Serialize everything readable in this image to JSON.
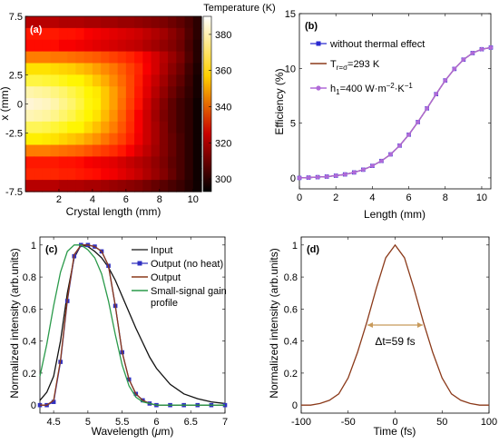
{
  "chart_data": [
    {
      "panel_label": "(a)",
      "type": "heatmap",
      "xlabel": "Crystal length (mm)",
      "ylabel": "x (mm)",
      "xlim": [
        0,
        10.5
      ],
      "ylim": [
        -7.5,
        7.5
      ],
      "xticks": [
        "2",
        "4",
        "6",
        "8",
        "10"
      ],
      "yticks": [
        "-7.5",
        "-2.5",
        "0",
        "2.5",
        "7.5"
      ],
      "colorbar": {
        "label": "Temperature (K)",
        "range": [
          293,
          390
        ],
        "ticks": [
          "300",
          "320",
          "340",
          "360",
          "380"
        ]
      },
      "x": [
        0.25,
        0.75,
        1.25,
        1.75,
        2.25,
        2.75,
        3.25,
        3.75,
        4.25,
        4.75,
        5.25,
        5.75,
        6.25,
        6.75,
        7.25,
        7.75,
        8.25,
        8.75,
        9.25,
        9.75,
        10.25
      ],
      "y": [
        7,
        6,
        5,
        4,
        3,
        2,
        1,
        0,
        -1,
        -2,
        -3,
        -4,
        -5,
        -6,
        -7
      ],
      "values": [
        [
          318,
          318,
          318,
          318,
          317,
          317,
          317,
          316,
          316,
          315,
          315,
          314,
          314,
          313,
          312,
          311,
          310,
          308,
          306,
          303,
          299
        ],
        [
          330,
          330,
          330,
          330,
          329,
          329,
          328,
          327,
          326,
          325,
          324,
          323,
          322,
          321,
          319,
          317,
          315,
          312,
          309,
          304,
          299
        ],
        [
          328,
          328,
          328,
          328,
          327,
          327,
          326,
          325,
          324,
          323,
          322,
          321,
          320,
          319,
          317,
          315,
          313,
          311,
          308,
          303,
          298
        ],
        [
          345,
          345,
          345,
          344,
          344,
          343,
          342,
          341,
          340,
          338,
          336,
          334,
          332,
          329,
          326,
          322,
          318,
          314,
          310,
          304,
          298
        ],
        [
          360,
          360,
          360,
          359,
          358,
          357,
          355,
          353,
          350,
          347,
          344,
          340,
          336,
          332,
          327,
          322,
          317,
          312,
          308,
          302,
          297
        ],
        [
          372,
          372,
          371,
          370,
          368,
          366,
          363,
          360,
          356,
          352,
          347,
          342,
          337,
          331,
          325,
          320,
          315,
          310,
          306,
          301,
          296
        ],
        [
          382,
          381,
          380,
          378,
          376,
          373,
          370,
          366,
          361,
          356,
          350,
          344,
          337,
          330,
          324,
          318,
          313,
          308,
          304,
          300,
          296
        ],
        [
          386,
          385,
          384,
          382,
          379,
          376,
          372,
          367,
          362,
          356,
          350,
          343,
          336,
          329,
          322,
          316,
          311,
          306,
          302,
          299,
          295
        ],
        [
          383,
          382,
          381,
          379,
          376,
          373,
          369,
          365,
          360,
          354,
          348,
          341,
          334,
          327,
          321,
          315,
          310,
          306,
          302,
          299,
          295
        ],
        [
          374,
          374,
          373,
          371,
          369,
          366,
          363,
          359,
          355,
          350,
          345,
          339,
          333,
          327,
          321,
          316,
          311,
          306,
          302,
          299,
          295
        ],
        [
          362,
          362,
          361,
          360,
          358,
          356,
          354,
          351,
          348,
          344,
          340,
          336,
          331,
          326,
          321,
          316,
          311,
          307,
          303,
          299,
          295
        ],
        [
          345,
          345,
          345,
          344,
          343,
          342,
          341,
          339,
          337,
          335,
          333,
          330,
          327,
          323,
          319,
          315,
          311,
          307,
          303,
          299,
          295
        ],
        [
          330,
          330,
          330,
          330,
          329,
          329,
          328,
          327,
          326,
          325,
          324,
          322,
          320,
          318,
          316,
          313,
          310,
          306,
          303,
          299,
          295
        ],
        [
          332,
          332,
          332,
          332,
          331,
          331,
          330,
          329,
          328,
          327,
          326,
          324,
          322,
          320,
          317,
          314,
          311,
          307,
          303,
          299,
          295
        ],
        [
          318,
          318,
          318,
          318,
          317,
          317,
          317,
          316,
          316,
          315,
          314,
          313,
          312,
          311,
          309,
          307,
          305,
          303,
          301,
          298,
          295
        ]
      ]
    },
    {
      "panel_label": "(b)",
      "type": "line",
      "xlabel": "Length (mm)",
      "ylabel": "Efficiency (%)",
      "xlim": [
        0,
        10.5
      ],
      "ylim": [
        -1,
        15
      ],
      "xticks": [
        "0",
        "2",
        "4",
        "6",
        "8",
        "10"
      ],
      "yticks": [
        "0",
        "5",
        "10",
        "15"
      ],
      "legend_position": "top-left",
      "x": [
        0,
        0.5,
        1,
        1.5,
        2,
        2.5,
        3,
        3.5,
        4,
        4.5,
        5,
        5.5,
        6,
        6.5,
        7,
        7.5,
        8,
        8.5,
        9,
        9.5,
        10,
        10.5
      ],
      "series": [
        {
          "name_main": "without thermal effect",
          "name_sub": "",
          "name_mid": "",
          "name_sup": "",
          "name_tail": "",
          "color": "#2a2ad0",
          "marker": "square",
          "values": [
            0,
            0.03,
            0.07,
            0.12,
            0.2,
            0.32,
            0.5,
            0.75,
            1.1,
            1.55,
            2.15,
            2.95,
            3.95,
            5.1,
            6.35,
            7.65,
            8.9,
            9.95,
            10.8,
            11.4,
            11.75,
            11.9
          ]
        },
        {
          "name_main": "T",
          "name_sub": "r=σ",
          "name_mid": "",
          "name_sup": "",
          "name_tail": "=293 K",
          "color": "#8b3a1a",
          "marker": "none",
          "values": [
            0,
            0.03,
            0.07,
            0.12,
            0.2,
            0.32,
            0.5,
            0.75,
            1.1,
            1.55,
            2.15,
            2.95,
            3.95,
            5.1,
            6.35,
            7.65,
            8.9,
            9.95,
            10.8,
            11.4,
            11.75,
            11.9
          ]
        },
        {
          "name_main": "h",
          "name_sub": "1",
          "name_mid": "=400 W·m",
          "name_sup": "−2",
          "name_tail": "·K",
          "name_sup2": "−1",
          "color": "#b06ad8",
          "marker": "circle",
          "values": [
            0,
            0.03,
            0.07,
            0.12,
            0.2,
            0.32,
            0.5,
            0.75,
            1.1,
            1.55,
            2.15,
            2.95,
            3.95,
            5.1,
            6.35,
            7.65,
            8.9,
            9.95,
            10.8,
            11.4,
            11.75,
            11.9
          ]
        }
      ]
    },
    {
      "panel_label": "(c)",
      "type": "line",
      "xlabel_main": "Wavelength (",
      "xlabel_mu": "μ",
      "xlabel_tail": "m)",
      "ylabel": "Normalized intensity (arb.units)",
      "xlim": [
        4.3,
        7.0
      ],
      "ylim": [
        -0.05,
        1.05
      ],
      "xticks": [
        "4.5",
        "5",
        "5.5",
        "6",
        "6.5",
        "7"
      ],
      "yticks": [
        "0",
        "0.2",
        "0.4",
        "0.6",
        "0.8",
        "1"
      ],
      "legend_position": "top-right",
      "x": [
        4.3,
        4.4,
        4.5,
        4.6,
        4.7,
        4.8,
        4.9,
        5.0,
        5.1,
        5.2,
        5.3,
        5.4,
        5.5,
        5.6,
        5.7,
        5.8,
        5.9,
        6.0,
        6.2,
        6.4,
        6.6,
        6.8,
        7.0
      ],
      "series": [
        {
          "name": "Input",
          "color": "#111111",
          "marker": "none",
          "values": [
            0.03,
            0.08,
            0.18,
            0.4,
            0.7,
            0.92,
            1.0,
            0.99,
            0.96,
            0.92,
            0.86,
            0.78,
            0.68,
            0.58,
            0.48,
            0.39,
            0.3,
            0.23,
            0.13,
            0.07,
            0.04,
            0.02,
            0.01
          ]
        },
        {
          "name": "Output (no heat)",
          "color": "#3030c0",
          "marker": "square",
          "values": [
            0.0,
            0.0,
            0.02,
            0.27,
            0.65,
            0.93,
            1.0,
            1.0,
            0.99,
            0.96,
            0.87,
            0.62,
            0.33,
            0.16,
            0.07,
            0.03,
            0.01,
            0.0,
            0.0,
            0.0,
            0.0,
            0.0,
            0.0
          ]
        },
        {
          "name": "Output",
          "color": "#8b3a1a",
          "marker": "none",
          "values": [
            0.0,
            0.0,
            0.03,
            0.28,
            0.66,
            0.94,
            1.0,
            1.0,
            0.99,
            0.96,
            0.87,
            0.62,
            0.33,
            0.16,
            0.07,
            0.03,
            0.01,
            0.0,
            0.0,
            0.0,
            0.0,
            0.0,
            0.0
          ]
        },
        {
          "name": "Small-signal gain profile",
          "color": "#2a9a4a",
          "marker": "none",
          "values": [
            0.18,
            0.38,
            0.62,
            0.83,
            0.96,
            1.0,
            1.0,
            0.97,
            0.92,
            0.82,
            0.65,
            0.44,
            0.25,
            0.12,
            0.05,
            0.02,
            0.01,
            0.0,
            0.0,
            0.0,
            0.0,
            0.0,
            0.0
          ]
        }
      ]
    },
    {
      "panel_label": "(d)",
      "type": "line",
      "xlabel": "Time (fs)",
      "ylabel": "Normalized intensity (arb.units)",
      "xlim": [
        -100,
        100
      ],
      "ylim": [
        -0.05,
        1.05
      ],
      "xticks": [
        "-100",
        "-50",
        "0",
        "50",
        "100"
      ],
      "yticks": [
        "0",
        "0.2",
        "0.4",
        "0.6",
        "0.8",
        "1"
      ],
      "annotation_main": "Δt=59 fs",
      "annotation_span": [
        -29.5,
        29.5
      ],
      "annotation_y": 0.5,
      "x": [
        -100,
        -90,
        -80,
        -70,
        -60,
        -50,
        -40,
        -30,
        -20,
        -10,
        0,
        10,
        20,
        30,
        40,
        50,
        60,
        70,
        80,
        90,
        100
      ],
      "series": [
        {
          "color": "#8b3a1a",
          "values": [
            0.0,
            0.0,
            0.01,
            0.03,
            0.07,
            0.17,
            0.33,
            0.52,
            0.73,
            0.92,
            1.0,
            0.92,
            0.73,
            0.52,
            0.33,
            0.17,
            0.07,
            0.03,
            0.01,
            0.0,
            0.0
          ]
        }
      ]
    }
  ]
}
